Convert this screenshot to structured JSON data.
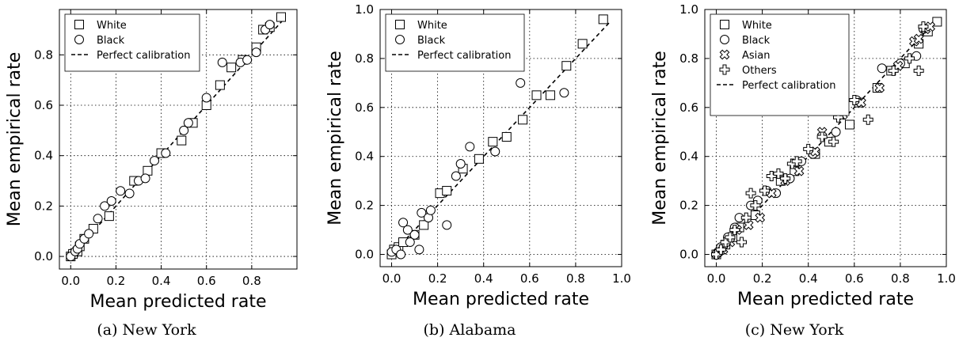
{
  "chart_data": [
    {
      "type": "scatter",
      "caption": "(a) New York",
      "xlabel": "Mean predicted rate",
      "ylabel": "Mean empirical rate",
      "xlim": [
        -0.05,
        1.0
      ],
      "ylim": [
        -0.05,
        0.98
      ],
      "xticks": [
        "0.0",
        "0.2",
        "0.4",
        "0.6",
        "0.8"
      ],
      "yticks": [
        "0.0",
        "0.2",
        "0.4",
        "0.6",
        "0.8"
      ],
      "grid": true,
      "legend_position": "top-left",
      "reference_line": {
        "name": "Perfect calibration",
        "points": [
          [
            0.0,
            0.0
          ],
          [
            0.94,
            0.94
          ]
        ]
      },
      "series": [
        {
          "name": "White",
          "marker": "square",
          "points": [
            [
              0.0,
              0.0
            ],
            [
              0.01,
              0.01
            ],
            [
              0.03,
              0.02
            ],
            [
              0.04,
              0.04
            ],
            [
              0.06,
              0.07
            ],
            [
              0.1,
              0.11
            ],
            [
              0.17,
              0.16
            ],
            [
              0.28,
              0.3
            ],
            [
              0.34,
              0.34
            ],
            [
              0.4,
              0.41
            ],
            [
              0.49,
              0.46
            ],
            [
              0.54,
              0.53
            ],
            [
              0.6,
              0.6
            ],
            [
              0.66,
              0.68
            ],
            [
              0.71,
              0.75
            ],
            [
              0.76,
              0.78
            ],
            [
              0.82,
              0.83
            ],
            [
              0.85,
              0.9
            ],
            [
              0.88,
              0.91
            ],
            [
              0.93,
              0.95
            ]
          ]
        },
        {
          "name": "Black",
          "marker": "circle",
          "points": [
            [
              0.0,
              0.0
            ],
            [
              0.02,
              0.02
            ],
            [
              0.03,
              0.03
            ],
            [
              0.04,
              0.05
            ],
            [
              0.06,
              0.07
            ],
            [
              0.08,
              0.09
            ],
            [
              0.12,
              0.15
            ],
            [
              0.15,
              0.2
            ],
            [
              0.18,
              0.22
            ],
            [
              0.22,
              0.26
            ],
            [
              0.26,
              0.25
            ],
            [
              0.3,
              0.3
            ],
            [
              0.33,
              0.31
            ],
            [
              0.37,
              0.38
            ],
            [
              0.42,
              0.41
            ],
            [
              0.5,
              0.5
            ],
            [
              0.52,
              0.53
            ],
            [
              0.6,
              0.63
            ],
            [
              0.67,
              0.77
            ],
            [
              0.75,
              0.77
            ],
            [
              0.78,
              0.78
            ],
            [
              0.82,
              0.81
            ],
            [
              0.86,
              0.9
            ],
            [
              0.88,
              0.92
            ]
          ]
        }
      ]
    },
    {
      "type": "scatter",
      "caption": "(b) Alabama",
      "xlabel": "Mean predicted rate",
      "ylabel": "Mean empirical rate",
      "xlim": [
        -0.05,
        1.0
      ],
      "ylim": [
        -0.05,
        1.0
      ],
      "xticks": [
        "0.0",
        "0.2",
        "0.4",
        "0.6",
        "0.8",
        "1.0"
      ],
      "yticks": [
        "0.0",
        "0.2",
        "0.4",
        "0.6",
        "0.8",
        "1.0"
      ],
      "grid": true,
      "legend_position": "top-left",
      "reference_line": {
        "name": "Perfect calibration",
        "points": [
          [
            0.0,
            0.0
          ],
          [
            0.95,
            0.95
          ]
        ]
      },
      "series": [
        {
          "name": "White",
          "marker": "square",
          "points": [
            [
              0.0,
              0.0
            ],
            [
              0.01,
              0.02
            ],
            [
              0.03,
              0.03
            ],
            [
              0.05,
              0.05
            ],
            [
              0.1,
              0.08
            ],
            [
              0.14,
              0.12
            ],
            [
              0.21,
              0.25
            ],
            [
              0.24,
              0.26
            ],
            [
              0.31,
              0.35
            ],
            [
              0.38,
              0.39
            ],
            [
              0.44,
              0.46
            ],
            [
              0.5,
              0.48
            ],
            [
              0.57,
              0.55
            ],
            [
              0.63,
              0.65
            ],
            [
              0.69,
              0.65
            ],
            [
              0.76,
              0.77
            ],
            [
              0.83,
              0.86
            ],
            [
              0.92,
              0.96
            ]
          ]
        },
        {
          "name": "Black",
          "marker": "circle",
          "points": [
            [
              0.0,
              0.01
            ],
            [
              0.02,
              0.02
            ],
            [
              0.04,
              0.0
            ],
            [
              0.05,
              0.13
            ],
            [
              0.07,
              0.1
            ],
            [
              0.08,
              0.05
            ],
            [
              0.1,
              0.08
            ],
            [
              0.12,
              0.02
            ],
            [
              0.13,
              0.17
            ],
            [
              0.16,
              0.15
            ],
            [
              0.17,
              0.18
            ],
            [
              0.24,
              0.12
            ],
            [
              0.28,
              0.32
            ],
            [
              0.3,
              0.37
            ],
            [
              0.34,
              0.44
            ],
            [
              0.45,
              0.42
            ],
            [
              0.56,
              0.7
            ],
            [
              0.75,
              0.66
            ]
          ]
        }
      ]
    },
    {
      "type": "scatter",
      "caption": "(c) New York",
      "xlabel": "Mean predicted rate",
      "ylabel": "Mean empirical rate",
      "xlim": [
        -0.05,
        1.0
      ],
      "ylim": [
        -0.05,
        1.0
      ],
      "xticks": [
        "0.0",
        "0.2",
        "0.4",
        "0.6",
        "0.8",
        "1.0"
      ],
      "yticks": [
        "0.0",
        "0.2",
        "0.4",
        "0.6",
        "0.8",
        "1.0"
      ],
      "grid": true,
      "legend_position": "top-left",
      "reference_line": {
        "name": "Perfect calibration",
        "points": [
          [
            0.0,
            0.0
          ],
          [
            0.96,
            0.96
          ]
        ]
      },
      "series": [
        {
          "name": "White",
          "marker": "square",
          "points": [
            [
              0.0,
              0.0
            ],
            [
              0.02,
              0.02
            ],
            [
              0.04,
              0.04
            ],
            [
              0.07,
              0.07
            ],
            [
              0.1,
              0.11
            ],
            [
              0.17,
              0.16
            ],
            [
              0.28,
              0.3
            ],
            [
              0.34,
              0.34
            ],
            [
              0.43,
              0.41
            ],
            [
              0.49,
              0.46
            ],
            [
              0.58,
              0.53
            ],
            [
              0.62,
              0.62
            ],
            [
              0.7,
              0.68
            ],
            [
              0.76,
              0.75
            ],
            [
              0.82,
              0.78
            ],
            [
              0.88,
              0.86
            ],
            [
              0.92,
              0.91
            ],
            [
              0.96,
              0.95
            ]
          ]
        },
        {
          "name": "Black",
          "marker": "circle",
          "points": [
            [
              0.0,
              0.0
            ],
            [
              0.02,
              0.03
            ],
            [
              0.05,
              0.07
            ],
            [
              0.08,
              0.11
            ],
            [
              0.1,
              0.15
            ],
            [
              0.15,
              0.2
            ],
            [
              0.18,
              0.22
            ],
            [
              0.22,
              0.26
            ],
            [
              0.26,
              0.25
            ],
            [
              0.32,
              0.31
            ],
            [
              0.37,
              0.38
            ],
            [
              0.42,
              0.41
            ],
            [
              0.52,
              0.5
            ],
            [
              0.61,
              0.63
            ],
            [
              0.72,
              0.76
            ],
            [
              0.8,
              0.78
            ],
            [
              0.87,
              0.81
            ],
            [
              0.9,
              0.92
            ]
          ]
        },
        {
          "name": "Asian",
          "marker": "x-circle",
          "points": [
            [
              0.01,
              0.01
            ],
            [
              0.03,
              0.02
            ],
            [
              0.06,
              0.05
            ],
            [
              0.09,
              0.1
            ],
            [
              0.14,
              0.12
            ],
            [
              0.19,
              0.15
            ],
            [
              0.24,
              0.25
            ],
            [
              0.3,
              0.3
            ],
            [
              0.36,
              0.34
            ],
            [
              0.43,
              0.42
            ],
            [
              0.46,
              0.5
            ],
            [
              0.55,
              0.57
            ],
            [
              0.63,
              0.62
            ],
            [
              0.71,
              0.68
            ],
            [
              0.79,
              0.77
            ],
            [
              0.86,
              0.87
            ],
            [
              0.88,
              0.88
            ],
            [
              0.91,
              0.92
            ],
            [
              0.93,
              0.93
            ]
          ]
        },
        {
          "name": "Others",
          "marker": "plus",
          "points": [
            [
              0.0,
              0.0
            ],
            [
              0.02,
              0.02
            ],
            [
              0.04,
              0.05
            ],
            [
              0.06,
              0.07
            ],
            [
              0.08,
              0.1
            ],
            [
              0.11,
              0.05
            ],
            [
              0.13,
              0.15
            ],
            [
              0.15,
              0.25
            ],
            [
              0.17,
              0.2
            ],
            [
              0.21,
              0.26
            ],
            [
              0.24,
              0.32
            ],
            [
              0.27,
              0.33
            ],
            [
              0.3,
              0.31
            ],
            [
              0.33,
              0.37
            ],
            [
              0.35,
              0.38
            ],
            [
              0.4,
              0.43
            ],
            [
              0.46,
              0.48
            ],
            [
              0.51,
              0.46
            ],
            [
              0.53,
              0.56
            ],
            [
              0.6,
              0.63
            ],
            [
              0.66,
              0.55
            ],
            [
              0.77,
              0.75
            ],
            [
              0.84,
              0.8
            ],
            [
              0.88,
              0.75
            ],
            [
              0.9,
              0.93
            ]
          ]
        }
      ]
    }
  ]
}
